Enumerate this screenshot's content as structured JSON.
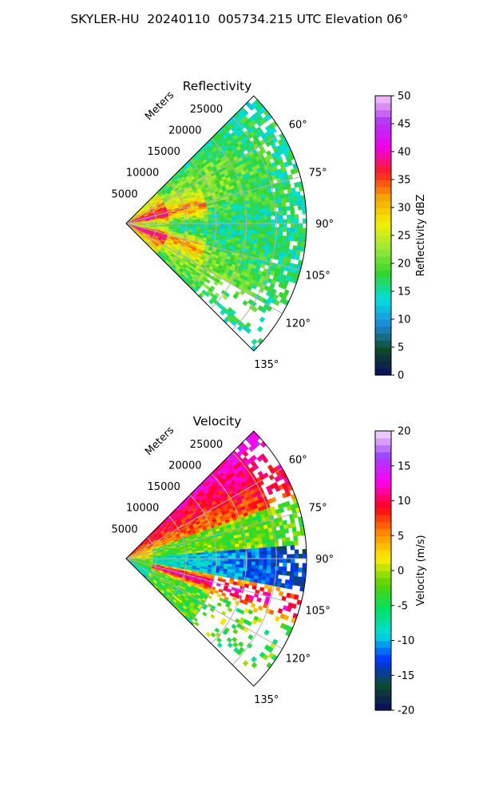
{
  "page_title": "SKYLER-HU  20240110  005734.215 UTC Elevation 06°",
  "colors": {
    "reflectivity_stops": [
      "#0b0b5e",
      "#0e4a2a",
      "#1f8ad8",
      "#00e0e0",
      "#32d52d",
      "#9cea3a",
      "#f5ee00",
      "#f4a500",
      "#ff1c22",
      "#ee00ee",
      "#b038f5",
      "#f6c8f6"
    ],
    "velocity_stops": [
      "#0b0b5e",
      "#0f4a2f",
      "#0033ff",
      "#00dfe0",
      "#00e060",
      "#5ad400",
      "#ffee00",
      "#ff8800",
      "#ff0018",
      "#ff00ee",
      "#a040ff",
      "#fbe0fb"
    ],
    "grid": "#b0b0b0"
  },
  "chart_data": [
    {
      "type": "heatmap",
      "panel": "reflectivity",
      "title": "Reflectivity",
      "radial_axis_label": "Meters",
      "radial_ticks": [
        5000,
        10000,
        15000,
        20000,
        25000
      ],
      "radial_tick_labels": [
        "5000",
        "10000",
        "15000",
        "20000",
        "25000"
      ],
      "radial_range": [
        0,
        30000
      ],
      "azimuth_range_deg": [
        45,
        135
      ],
      "azimuth_ticks": [
        "60°",
        "75°",
        "90°",
        "105°",
        "120°",
        "135°"
      ],
      "colorbar": {
        "label": "Reflectivity dBZ",
        "range": [
          0,
          50
        ],
        "ticks": [
          "0",
          "5",
          "10",
          "15",
          "20",
          "25",
          "30",
          "35",
          "40",
          "45",
          "50"
        ]
      },
      "grid": true
    },
    {
      "type": "heatmap",
      "panel": "velocity",
      "title": "Velocity",
      "radial_axis_label": "Meters",
      "radial_ticks": [
        5000,
        10000,
        15000,
        20000,
        25000
      ],
      "radial_tick_labels": [
        "5000",
        "10000",
        "15000",
        "20000",
        "25000"
      ],
      "radial_range": [
        0,
        30000
      ],
      "azimuth_range_deg": [
        45,
        135
      ],
      "azimuth_ticks": [
        "60°",
        "75°",
        "90°",
        "105°",
        "120°",
        "135°"
      ],
      "colorbar": {
        "label": "Velocity (m/s)",
        "range": [
          -20,
          20
        ],
        "ticks": [
          "-20",
          "-15",
          "-10",
          "-5",
          "0",
          "5",
          "10",
          "15",
          "20"
        ]
      },
      "grid": true
    }
  ]
}
